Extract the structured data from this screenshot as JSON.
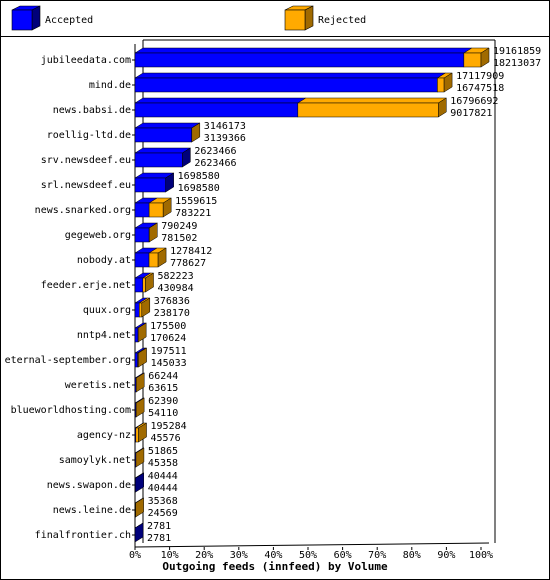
{
  "chart_data": {
    "type": "stacked-hbar-3d",
    "x_label": "Outgoing feeds (innfeed) by Volume",
    "categories": [
      "jubileedata.com",
      "mind.de",
      "news.babsi.de",
      "roellig-ltd.de",
      "srv.newsdeef.eu",
      "srl.newsdeef.eu",
      "news.snarked.org",
      "gegeweb.org",
      "nobody.at",
      "feeder.erje.net",
      "quux.org",
      "nntp4.net",
      "eternal-september.org",
      "weretis.net",
      "blueworldhosting.com",
      "agency-nz",
      "samoylyk.net",
      "news.swapon.de",
      "news.leine.de",
      "finalfrontier.ch"
    ],
    "series": [
      {
        "name": "Accepted",
        "color": "#0000ff",
        "side": "#00007a",
        "values": [
          18213037,
          16747518,
          9017821,
          3139366,
          2623466,
          1698580,
          783221,
          781502,
          778627,
          430984,
          238170,
          170624,
          145033,
          63615,
          54110,
          45576,
          45358,
          40444,
          24569,
          2781
        ]
      },
      {
        "name": "Rejected",
        "color": "#ffaa00",
        "side": "#a06a00",
        "values": [
          948822,
          370391,
          7778871,
          6807,
          0,
          0,
          776394,
          8747,
          499785,
          151239,
          138666,
          4876,
          52478,
          2629,
          8280,
          149708,
          6507,
          0,
          10799,
          0
        ]
      }
    ],
    "totals": [
      19161859,
      17117909,
      16796692,
      3146173,
      2623466,
      1698580,
      1559615,
      790249,
      1278412,
      582223,
      376836,
      175500,
      197511,
      66244,
      62390,
      195284,
      51865,
      40444,
      35368,
      2781
    ],
    "xlim": [
      0,
      19161859
    ],
    "xticks": [
      {
        "value": 0,
        "label": "0%"
      },
      {
        "value": 1916185.9,
        "label": "10%"
      },
      {
        "value": 3832371.8,
        "label": "20%"
      },
      {
        "value": 5748557.7,
        "label": "30%"
      },
      {
        "value": 7664743.6,
        "label": "40%"
      },
      {
        "value": 9580929.5,
        "label": "50%"
      },
      {
        "value": 11497115.4,
        "label": "60%"
      },
      {
        "value": 13413301.3,
        "label": "70%"
      },
      {
        "value": 15329487.2,
        "label": "80%"
      },
      {
        "value": 17245673.1,
        "label": "90%"
      },
      {
        "value": 19161859,
        "label": "100%"
      }
    ]
  }
}
